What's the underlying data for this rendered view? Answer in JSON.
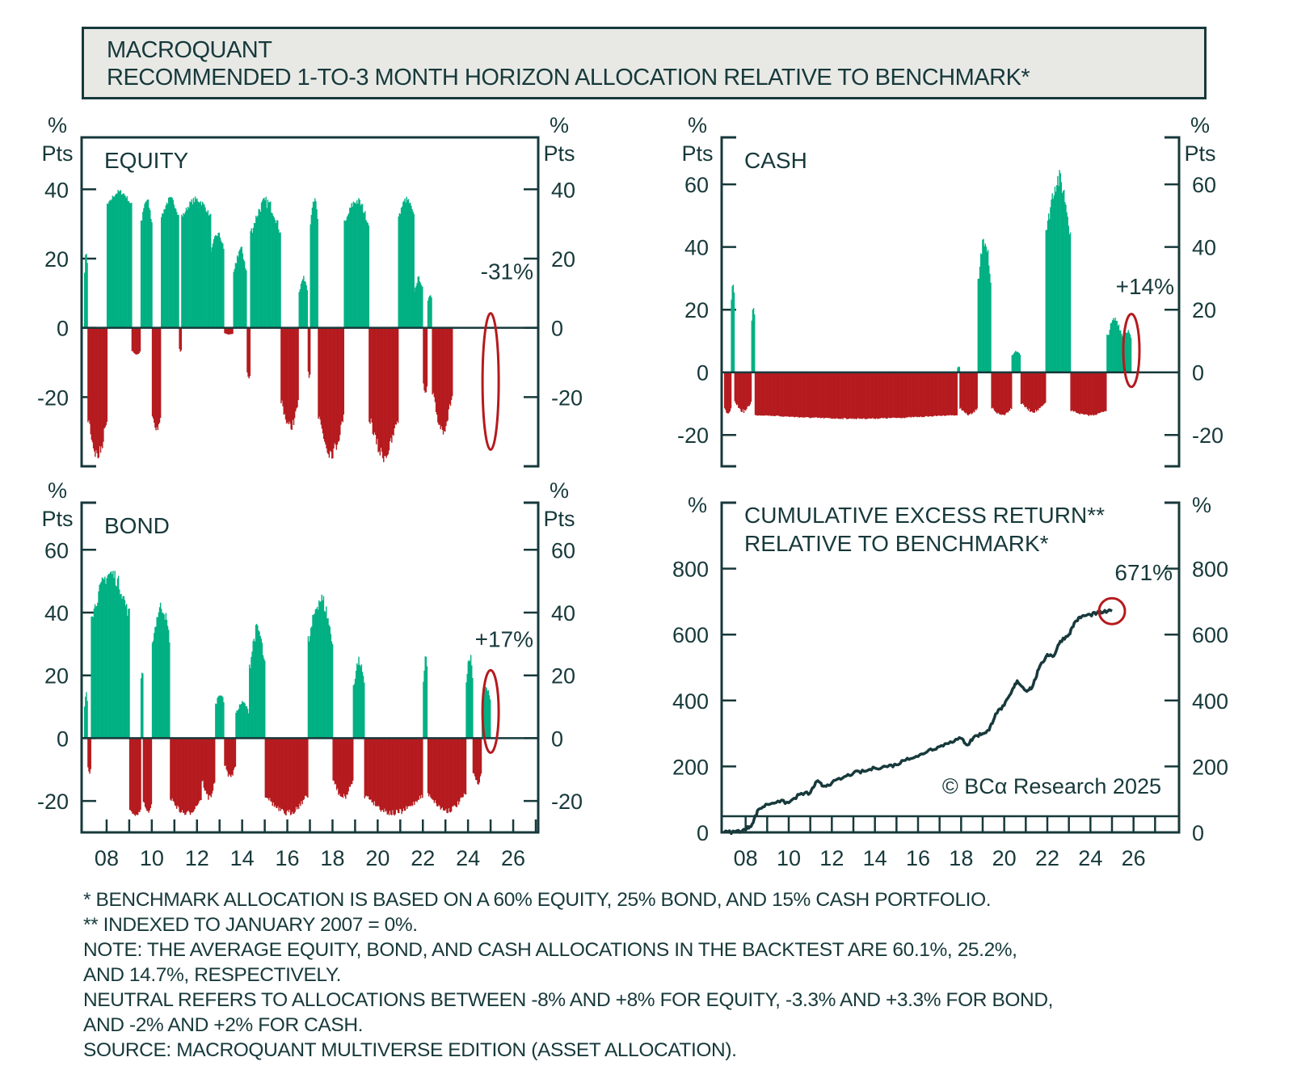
{
  "header": {
    "line1": "MACROQUANT",
    "line2": "RECOMMENDED 1-TO-3 MONTH HORIZON ALLOCATION RELATIVE TO BENCHMARK*"
  },
  "colors": {
    "positive": "#00b083",
    "negative": "#b51a1e",
    "axis": "#17393b",
    "highlight": "#b51a1e"
  },
  "chart_data": [
    {
      "id": "equity",
      "type": "bar",
      "title": "EQUITY",
      "ylabel_left": [
        "%",
        "Pts"
      ],
      "ylabel_right": [
        "%",
        "Pts"
      ],
      "ylim": [
        -40,
        55
      ],
      "yticks": [
        -20,
        0,
        20,
        40
      ],
      "xlim": [
        2007,
        2027
      ],
      "xtick_labels": [
        "08",
        "10",
        "12",
        "14",
        "16",
        "18",
        "20",
        "22",
        "24",
        "26"
      ],
      "annotation": {
        "label": "-31%",
        "x": 2025.0,
        "value": -31
      },
      "segments": [
        [
          2007.0,
          2007.15,
          8,
          23
        ],
        [
          2007.15,
          2008.0,
          -10,
          -39
        ],
        [
          2008.0,
          2009.1,
          30,
          40
        ],
        [
          2009.1,
          2009.5,
          -5,
          -8
        ],
        [
          2009.5,
          2010.0,
          20,
          38
        ],
        [
          2010.0,
          2010.4,
          -20,
          -30
        ],
        [
          2010.4,
          2011.2,
          25,
          38
        ],
        [
          2011.2,
          2011.3,
          -5,
          -7
        ],
        [
          2011.3,
          2012.6,
          25,
          38
        ],
        [
          2012.6,
          2013.2,
          15,
          28
        ],
        [
          2013.2,
          2013.6,
          -1,
          -2
        ],
        [
          2013.6,
          2014.2,
          5,
          24
        ],
        [
          2014.2,
          2014.35,
          -10,
          -15
        ],
        [
          2014.35,
          2015.7,
          15,
          38
        ],
        [
          2015.7,
          2016.5,
          -10,
          -30
        ],
        [
          2016.5,
          2016.9,
          5,
          15
        ],
        [
          2016.9,
          2017.0,
          -10,
          -15
        ],
        [
          2017.0,
          2017.35,
          20,
          38
        ],
        [
          2017.35,
          2018.5,
          -10,
          -38
        ],
        [
          2018.5,
          2019.6,
          20,
          38
        ],
        [
          2019.6,
          2020.9,
          -10,
          -39
        ],
        [
          2020.9,
          2021.6,
          25,
          38
        ],
        [
          2021.6,
          2022.0,
          5,
          15
        ],
        [
          2022.0,
          2022.2,
          -10,
          -20
        ],
        [
          2022.2,
          2022.4,
          5,
          10
        ],
        [
          2022.4,
          2023.3,
          -5,
          -31
        ]
      ]
    },
    {
      "id": "cash",
      "type": "bar",
      "title": "CASH",
      "ylabel_left": [
        "%",
        "Pts"
      ],
      "ylabel_right": [
        "%",
        "Pts"
      ],
      "ylim": [
        -30,
        75
      ],
      "yticks": [
        -20,
        0,
        20,
        40,
        60
      ],
      "xlim": [
        2007,
        2027
      ],
      "xtick_labels": [
        "08",
        "10",
        "12",
        "14",
        "16",
        "18",
        "20",
        "22",
        "24",
        "26"
      ],
      "annotation": {
        "label": "+14%",
        "x": 2025.0,
        "value": 14
      },
      "segments": [
        [
          2007.0,
          2007.3,
          -8,
          -14
        ],
        [
          2007.3,
          2007.45,
          15,
          30
        ],
        [
          2007.45,
          2008.2,
          -5,
          -13
        ],
        [
          2008.2,
          2008.35,
          8,
          22
        ],
        [
          2008.35,
          2017.3,
          -12,
          -15
        ],
        [
          2017.3,
          2017.4,
          1,
          2
        ],
        [
          2017.4,
          2018.2,
          -8,
          -14
        ],
        [
          2018.2,
          2018.8,
          3,
          47
        ],
        [
          2018.8,
          2019.7,
          -8,
          -14
        ],
        [
          2019.7,
          2020.1,
          3,
          7
        ],
        [
          2020.1,
          2021.2,
          -6,
          -13
        ],
        [
          2021.2,
          2022.3,
          20,
          65
        ],
        [
          2022.3,
          2023.9,
          -10,
          -14
        ],
        [
          2023.9,
          2024.6,
          3,
          18
        ],
        [
          2024.6,
          2025.0,
          5,
          14
        ]
      ]
    },
    {
      "id": "bond",
      "type": "bar",
      "title": "BOND",
      "ylabel_left": [
        "%",
        "Pts"
      ],
      "ylabel_right": [
        "%",
        "Pts"
      ],
      "ylim": [
        -30,
        75
      ],
      "yticks": [
        -20,
        0,
        20,
        40,
        60
      ],
      "xlim": [
        2007,
        2027
      ],
      "xtick_labels": [
        "08",
        "10",
        "12",
        "14",
        "16",
        "18",
        "20",
        "22",
        "24",
        "26"
      ],
      "annotation": {
        "label": "+17%",
        "x": 2025.0,
        "value": 17
      },
      "segments": [
        [
          2007.0,
          2007.15,
          3,
          15
        ],
        [
          2007.15,
          2007.3,
          -5,
          -12
        ],
        [
          2007.3,
          2009.0,
          20,
          55
        ],
        [
          2009.0,
          2009.5,
          -20,
          -25
        ],
        [
          2009.5,
          2009.6,
          15,
          22
        ],
        [
          2009.6,
          2010.0,
          -15,
          -24
        ],
        [
          2010.0,
          2010.8,
          15,
          44
        ],
        [
          2010.8,
          2012.2,
          -12,
          -25
        ],
        [
          2012.2,
          2012.8,
          -5,
          -20
        ],
        [
          2012.8,
          2013.2,
          5,
          15
        ],
        [
          2013.2,
          2013.7,
          -3,
          -13
        ],
        [
          2013.7,
          2014.3,
          3,
          12
        ],
        [
          2014.3,
          2015.0,
          5,
          37
        ],
        [
          2015.0,
          2016.9,
          -10,
          -25
        ],
        [
          2016.9,
          2018.0,
          10,
          47
        ],
        [
          2018.0,
          2018.9,
          -5,
          -20
        ],
        [
          2018.9,
          2019.4,
          5,
          26
        ],
        [
          2019.4,
          2022.0,
          -10,
          -25
        ],
        [
          2022.0,
          2022.2,
          5,
          28
        ],
        [
          2022.2,
          2023.9,
          -10,
          -24
        ],
        [
          2023.9,
          2024.2,
          5,
          28
        ],
        [
          2024.2,
          2024.6,
          -5,
          -15
        ],
        [
          2024.6,
          2025.0,
          5,
          17
        ]
      ]
    },
    {
      "id": "cumulative",
      "type": "line",
      "title": [
        "CUMULATIVE EXCESS RETURN**",
        "RELATIVE TO BENCHMARK*"
      ],
      "ylabel_left": [
        "%"
      ],
      "ylabel_right": [
        "%"
      ],
      "ylim": [
        0,
        1000
      ],
      "yticks": [
        0,
        200,
        400,
        600,
        800
      ],
      "xlim": [
        2007,
        2028
      ],
      "xtick_labels": [
        "08",
        "10",
        "12",
        "14",
        "16",
        "18",
        "20",
        "22",
        "24",
        "26"
      ],
      "annotation": {
        "label": "671%",
        "x": 2025.0,
        "value": 671
      },
      "x": [
        2007.0,
        2007.5,
        2008.0,
        2008.3,
        2008.6,
        2009.0,
        2009.5,
        2010.0,
        2010.5,
        2011.0,
        2011.3,
        2011.6,
        2012.0,
        2012.5,
        2013.0,
        2013.5,
        2014.0,
        2014.5,
        2015.0,
        2015.5,
        2016.0,
        2016.5,
        2017.0,
        2017.5,
        2018.0,
        2018.3,
        2018.6,
        2019.0,
        2019.3,
        2019.6,
        2020.0,
        2020.3,
        2020.6,
        2021.0,
        2021.3,
        2021.6,
        2022.0,
        2022.3,
        2022.6,
        2023.0,
        2023.3,
        2023.6,
        2024.0,
        2024.3,
        2024.6,
        2025.0
      ],
      "y": [
        0,
        2,
        8,
        25,
        70,
        85,
        95,
        90,
        115,
        120,
        155,
        140,
        150,
        165,
        180,
        185,
        195,
        200,
        205,
        225,
        230,
        250,
        260,
        275,
        285,
        265,
        290,
        300,
        310,
        360,
        385,
        420,
        460,
        430,
        440,
        495,
        540,
        535,
        580,
        600,
        640,
        655,
        660,
        665,
        668,
        671
      ]
    }
  ],
  "watermark": "© BCα Research 2025",
  "notes": [
    "*  BENCHMARK ALLOCATION IS BASED ON A 60% EQUITY, 25% BOND, AND 15% CASH PORTFOLIO.",
    "** INDEXED TO JANUARY 2007 = 0%.",
    "NOTE: THE AVERAGE EQUITY, BOND, AND CASH ALLOCATIONS IN THE BACKTEST ARE 60.1%, 25.2%,",
    "AND 14.7%, RESPECTIVELY.",
    "NEUTRAL REFERS TO ALLOCATIONS BETWEEN -8% AND +8% FOR EQUITY, -3.3% AND +3.3% FOR BOND,",
    "AND -2% AND +2% FOR CASH.",
    "SOURCE: MACROQUANT MULTIVERSE EDITION (ASSET ALLOCATION)."
  ]
}
